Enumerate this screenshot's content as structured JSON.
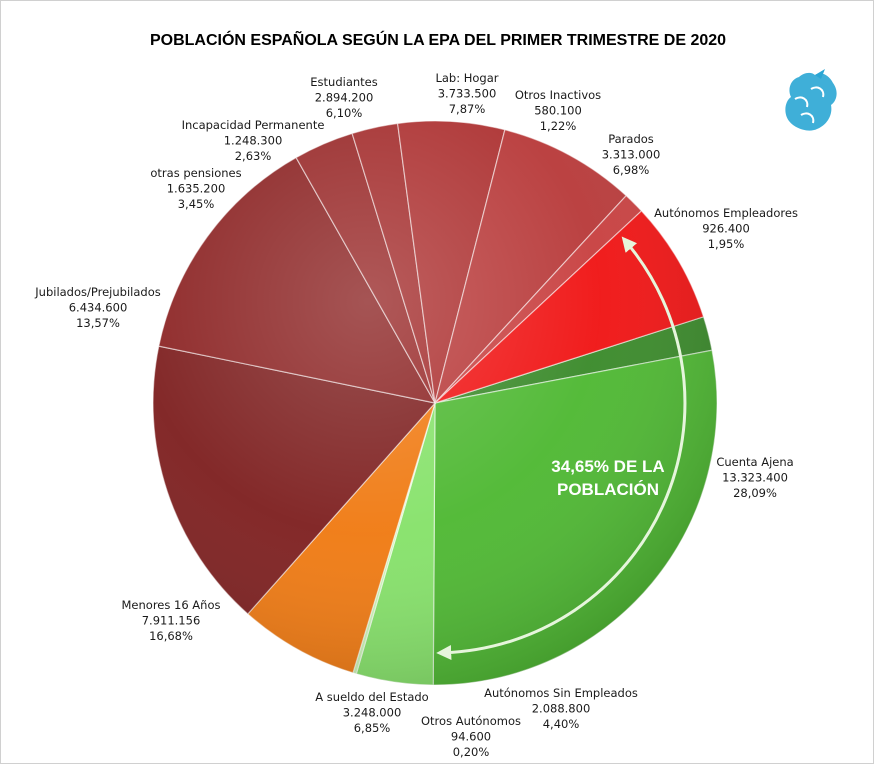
{
  "chart_data": {
    "type": "pie",
    "title": "POBLACIÓN ESPAÑOLA SEGÚN LA EPA DEL PRIMER TRIMESTRE DE 2020",
    "start_angle_deg": 72.2,
    "direction": "clockwise",
    "legend": "none",
    "slices": [
      {
        "label": "Autónomos Empleadores",
        "value": "926.400",
        "percent": "1,95%",
        "pct": 1.95,
        "color": "#3a8a2a"
      },
      {
        "label": "Cuenta Ajena",
        "value": "13.323.400",
        "percent": "28,09%",
        "pct": 28.09,
        "color": "#4eb832"
      },
      {
        "label": "Autónomos Sin Empleados",
        "value": "2.088.800",
        "percent": "4,40%",
        "pct": 4.4,
        "color": "#86e26a"
      },
      {
        "label": "Otros Autónomos",
        "value": "94.600",
        "percent": "0,20%",
        "pct": 0.2,
        "color": "#c9f3b4"
      },
      {
        "label": "A sueldo del Estado",
        "value": "3.248.000",
        "percent": "6,85%",
        "pct": 6.85,
        "color": "#f07a12"
      },
      {
        "label": "Menores 16 Años",
        "value": "7.911.156",
        "percent": "16,68%",
        "pct": 16.68,
        "color": "#7e2020"
      },
      {
        "label": "Jubilados/Prejubilados",
        "value": "6.434.600",
        "percent": "13,57%",
        "pct": 13.57,
        "color": "#8c2424"
      },
      {
        "label": "otras pensiones",
        "value": "1.635.200",
        "percent": "3,45%",
        "pct": 3.45,
        "color": "#992a2a"
      },
      {
        "label": "Incapacidad Permanente",
        "value": "1.248.300",
        "percent": "2,63%",
        "pct": 2.63,
        "color": "#a42e2e"
      },
      {
        "label": "Estudiantes",
        "value": "2.894.200",
        "percent": "6,10%",
        "pct": 6.1,
        "color": "#ad3232"
      },
      {
        "label": "Lab: Hogar",
        "value": "3.733.500",
        "percent": "7,87%",
        "pct": 7.87,
        "color": "#b83a3a"
      },
      {
        "label": "Otros Inactivos",
        "value": "580.100",
        "percent": "1,22%",
        "pct": 1.22,
        "color": "#c84040"
      },
      {
        "label": "Parados",
        "value": "3.313.000",
        "percent": "6,98%",
        "pct": 6.98,
        "color": "#f01414"
      }
    ],
    "annotation": {
      "line1": "34,65% DE LA",
      "line2": "POBLACIÓN"
    }
  }
}
